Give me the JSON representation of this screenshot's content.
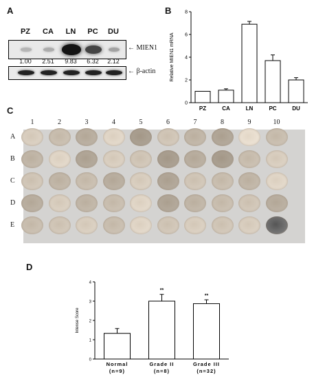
{
  "panels": {
    "a": "A",
    "b": "B",
    "c": "C",
    "d": "D"
  },
  "blot": {
    "lanes": [
      "PZ",
      "CA",
      "LN",
      "PC",
      "DU"
    ],
    "values": [
      "1.00",
      "2.51",
      "9.83",
      "6.32",
      "2.12"
    ],
    "target_label": "← MIEN1",
    "control_label": "← β-actin",
    "mien1_intensity": [
      0.1,
      0.15,
      0.95,
      0.7,
      0.2
    ]
  },
  "tma": {
    "columns": [
      "1",
      "2",
      "3",
      "4",
      "5",
      "6",
      "7",
      "8",
      "9",
      "10"
    ],
    "rows": [
      "A",
      "B",
      "C",
      "D",
      "E"
    ]
  },
  "chart_data": [
    {
      "type": "bar",
      "panel": "B",
      "categories": [
        "PZ",
        "CA",
        "LN",
        "PC",
        "DU"
      ],
      "values": [
        1.0,
        1.1,
        6.9,
        3.7,
        2.0
      ],
      "errors": [
        0.0,
        0.12,
        0.25,
        0.5,
        0.2
      ],
      "ylabel": "Relative MIEN1 mRNA",
      "ylim": [
        0,
        8
      ],
      "yticks": [
        "0",
        "2",
        "4",
        "6",
        "8"
      ]
    },
    {
      "type": "bar",
      "panel": "D",
      "categories": [
        "Normal",
        "Grade II",
        "Grade III"
      ],
      "category_counts": [
        "(n=9)",
        "(n=8)",
        "(n=32)"
      ],
      "values": [
        1.33,
        3.0,
        2.87
      ],
      "errors": [
        0.25,
        0.35,
        0.2
      ],
      "significance": [
        "",
        "**",
        "**"
      ],
      "ylabel": "Intense Score",
      "ylim": [
        0,
        4
      ],
      "yticks": [
        "0",
        "1",
        "2",
        "3",
        "4"
      ]
    }
  ]
}
